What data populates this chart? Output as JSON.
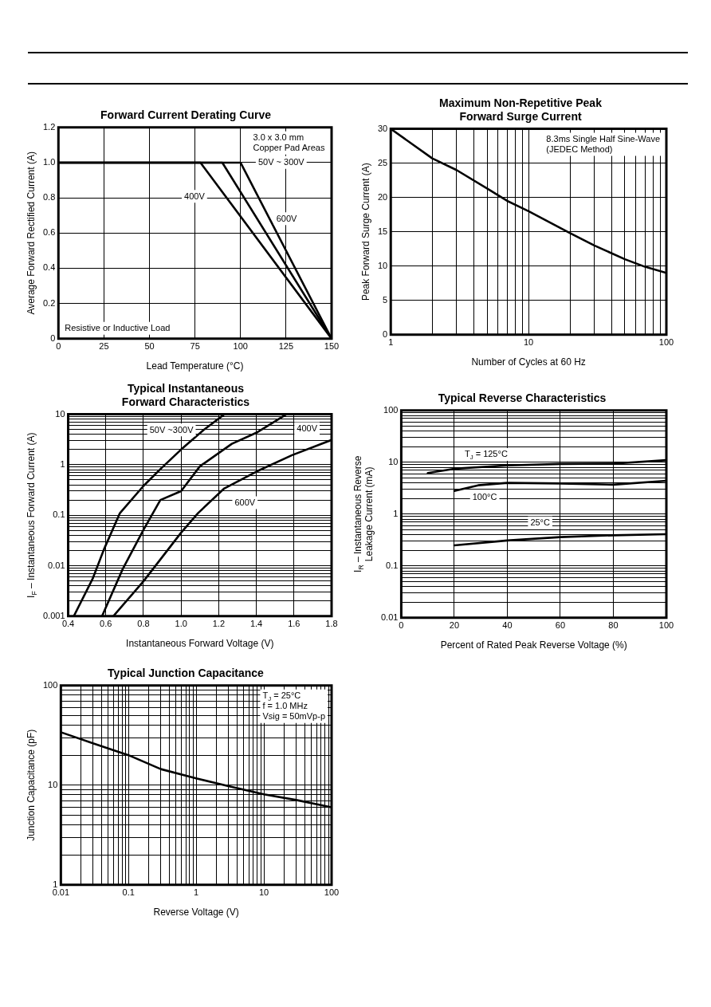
{
  "chart_data": [
    {
      "type": "line",
      "title": "Forward Current Derating Curve",
      "xlabel": "Lead Temperature (°C)",
      "ylabel": "Average Forward Rectified Current (A)",
      "xlim": [
        0,
        150
      ],
      "xticks": [
        0,
        25,
        50,
        75,
        100,
        125,
        150
      ],
      "ylim": [
        0,
        1.2
      ],
      "yticks": [
        0,
        0.2,
        {
          "value": 0.4,
          "label": "0.4"
        },
        {
          "value": 0.6,
          "label": "0.6"
        },
        {
          "value": 0.8,
          "label": "0.8"
        },
        {
          "value": 1,
          "label": "1.0"
        },
        1.2
      ],
      "grid": true,
      "legend": false,
      "series": [
        {
          "color": "#000000",
          "x": [
            0,
            100,
            150
          ],
          "values": [
            1,
            1,
            0
          ]
        },
        {
          "color": "#000000",
          "x": [
            0,
            78,
            150
          ],
          "values": [
            1,
            1,
            0
          ]
        },
        {
          "color": "#000000",
          "x": [
            0,
            90,
            150
          ],
          "values": [
            1,
            1,
            0
          ]
        }
      ],
      "annotations": [
        "Resistive or Inductive Load",
        {
          "text": "50V ~ 300V",
          "x": 104,
          "y": 0.92
        },
        {
          "text": "400V",
          "x": 86,
          "y": 0.89
        },
        {
          "text": "600V",
          "x": 114,
          "y": 0.6
        },
        "3.0 x 3.0 mm\nCopper Pad Areas"
      ]
    },
    {
      "type": "line",
      "title": "Maximum Non-Repetitive Peak\nForward Surge Current",
      "xlabel": "Number of Cycles at 60 Hz",
      "ylabel": "Peak Forward Surge Current (A)",
      "log": "x",
      "xlim": [
        1,
        100
      ],
      "xticks": [
        1,
        {
          "value": 2,
          "label": null
        },
        {
          "value": 3,
          "label": null
        },
        {
          "value": 4,
          "label": null
        },
        {
          "value": 5,
          "label": null
        },
        {
          "value": 6,
          "label": null
        },
        {
          "value": 7,
          "label": null
        },
        {
          "value": 8,
          "label": null
        },
        {
          "value": 9,
          "label": null
        },
        10,
        {
          "value": 20,
          "label": null
        },
        {
          "value": 30,
          "label": null
        },
        {
          "value": 40,
          "label": null
        },
        {
          "value": 50,
          "label": null
        },
        {
          "value": 60,
          "label": null
        },
        {
          "value": 70,
          "label": null
        },
        {
          "value": 80,
          "label": null
        },
        {
          "value": 90,
          "label": null
        },
        100
      ],
      "ylim": [
        0,
        30
      ],
      "yticks": [
        0,
        5,
        10,
        15,
        20,
        25,
        30
      ],
      "grid": true,
      "legend": false,
      "series": [
        {
          "color": "#000000",
          "x": [
            1,
            2,
            3,
            5,
            7,
            10,
            20,
            30,
            50,
            70,
            100
          ],
          "values": [
            30,
            25.7,
            24,
            21.3,
            19.5,
            18,
            14.8,
            13,
            11,
            9.9,
            9
          ]
        }
      ],
      "annotations": [
        "8.3ms Single Half Sine-Wave\n(JEDEC Method)"
      ]
    },
    {
      "type": "line",
      "title": "Typical Instantaneous\nForward Characteristics",
      "xlabel": "Instantaneous Forward Voltage (V)",
      "ylabel": "I$_{F}$ – Instantaneous Forward Current (A)",
      "log": "y",
      "xlim": [
        0.4,
        1.8
      ],
      "xticks": [
        0.4,
        0.6,
        0.8,
        {
          "value": 1,
          "label": "1.0"
        },
        1.2,
        1.4,
        1.6,
        1.8
      ],
      "ylim": [
        0.001,
        10
      ],
      "yticks": [
        0.001,
        {
          "value": 0.002,
          "label": null
        },
        {
          "value": 0.003,
          "label": null
        },
        {
          "value": 0.004,
          "label": null
        },
        {
          "value": 0.005,
          "label": null
        },
        {
          "value": 0.006,
          "label": null
        },
        {
          "value": 0.007,
          "label": null
        },
        {
          "value": 0.008,
          "label": null
        },
        {
          "value": 0.009,
          "label": null
        },
        0.01,
        {
          "value": 0.02,
          "label": null
        },
        {
          "value": 0.03,
          "label": null
        },
        {
          "value": 0.04,
          "label": null
        },
        {
          "value": 0.05,
          "label": null
        },
        {
          "value": 0.06,
          "label": null
        },
        {
          "value": 0.07,
          "label": null
        },
        {
          "value": 0.08,
          "label": null
        },
        {
          "value": 0.09,
          "label": null
        },
        0.1,
        {
          "value": 0.2,
          "label": null
        },
        {
          "value": 0.3,
          "label": null
        },
        {
          "value": 0.4,
          "label": null
        },
        {
          "value": 0.5,
          "label": null
        },
        {
          "value": 0.6,
          "label": null
        },
        {
          "value": 0.7,
          "label": null
        },
        {
          "value": 0.8,
          "label": null
        },
        {
          "value": 0.9,
          "label": null
        },
        1,
        {
          "value": 2,
          "label": null
        },
        {
          "value": 3,
          "label": null
        },
        {
          "value": 4,
          "label": null
        },
        {
          "value": 5,
          "label": null
        },
        {
          "value": 6,
          "label": null
        },
        {
          "value": 7,
          "label": null
        },
        {
          "value": 8,
          "label": null
        },
        {
          "value": 9,
          "label": null
        },
        10
      ],
      "grid": true,
      "legend": false,
      "series": [
        {
          "color": "#000000",
          "x": [
            0.43,
            0.53,
            0.59,
            0.675,
            0.8,
            0.89,
            1.0,
            1.12,
            1.23
          ],
          "values": [
            0.001,
            0.0055,
            0.021,
            0.11,
            0.38,
            0.82,
            2,
            4.9,
            10
          ]
        },
        {
          "color": "#000000",
          "x": [
            0.58,
            0.69,
            0.8,
            0.89,
            1.0,
            1.1,
            1.27,
            1.4,
            1.56
          ],
          "values": [
            0.001,
            0.0086,
            0.051,
            0.2,
            0.3,
            0.93,
            2.6,
            4.3,
            10
          ]
        },
        {
          "color": "#000000",
          "x": [
            0.64,
            0.8,
            1.0,
            1.09,
            1.23,
            1.4,
            1.59,
            1.8
          ],
          "values": [
            0.001,
            0.0049,
            0.045,
            0.11,
            0.34,
            0.73,
            1.55,
            3.1
          ]
        }
      ],
      "annotations": [
        {
          "text": "50V ~300V",
          "x": 1.12,
          "y": 4.9
        },
        {
          "text": "400V",
          "x": 1.56,
          "y": 10
        },
        {
          "text": "600V",
          "x": 1.23,
          "y": 0.34
        }
      ]
    },
    {
      "type": "line",
      "title": "Typical Reverse Characteristics",
      "xlabel": "Percent of Rated Peak Reverse Voltage (%)",
      "ylabel": "I$_{R}$ – Instantaneous Reverse\nLeakage Current (mA)",
      "log": "y",
      "xlim": [
        0,
        100
      ],
      "xticks": [
        0,
        20,
        40,
        60,
        80,
        100
      ],
      "ylim": [
        0.01,
        100
      ],
      "yticks": [
        0.01,
        {
          "value": 0.02,
          "label": null
        },
        {
          "value": 0.03,
          "label": null
        },
        {
          "value": 0.04,
          "label": null
        },
        {
          "value": 0.05,
          "label": null
        },
        {
          "value": 0.06,
          "label": null
        },
        {
          "value": 0.07,
          "label": null
        },
        {
          "value": 0.08,
          "label": null
        },
        {
          "value": 0.09,
          "label": null
        },
        0.1,
        {
          "value": 0.2,
          "label": null
        },
        {
          "value": 0.3,
          "label": null
        },
        {
          "value": 0.4,
          "label": null
        },
        {
          "value": 0.5,
          "label": null
        },
        {
          "value": 0.6,
          "label": null
        },
        {
          "value": 0.7,
          "label": null
        },
        {
          "value": 0.8,
          "label": null
        },
        {
          "value": 0.9,
          "label": null
        },
        1,
        {
          "value": 2,
          "label": null
        },
        {
          "value": 3,
          "label": null
        },
        {
          "value": 4,
          "label": null
        },
        {
          "value": 5,
          "label": null
        },
        {
          "value": 6,
          "label": null
        },
        {
          "value": 7,
          "label": null
        },
        {
          "value": 8,
          "label": null
        },
        {
          "value": 9,
          "label": null
        },
        10,
        {
          "value": 20,
          "label": null
        },
        {
          "value": 30,
          "label": null
        },
        {
          "value": 40,
          "label": null
        },
        {
          "value": 50,
          "label": null
        },
        {
          "value": 60,
          "label": null
        },
        {
          "value": 70,
          "label": null
        },
        {
          "value": 80,
          "label": null
        },
        {
          "value": 90,
          "label": null
        },
        100
      ],
      "grid": true,
      "legend": false,
      "series": [
        {
          "color": "#000000",
          "x": [
            10,
            20,
            40,
            60,
            80,
            100
          ],
          "values": [
            6.2,
            7.5,
            8.7,
            9.3,
            9.4,
            11
          ]
        },
        {
          "color": "#000000",
          "x": [
            20,
            29,
            40,
            60,
            80,
            100
          ],
          "values": [
            2.8,
            3.6,
            4,
            3.9,
            3.7,
            4.4
          ]
        },
        {
          "color": "#000000",
          "x": [
            20,
            40,
            60,
            80,
            100
          ],
          "values": [
            0.25,
            0.31,
            0.36,
            0.39,
            0.41
          ]
        }
      ],
      "annotations": [
        {
          "text": "T$_{J}$ = 125°C",
          "x": 20,
          "y": 7.5
        },
        {
          "text": "100°C",
          "x": 40,
          "y": 4
        },
        {
          "text": "25°C",
          "x": 60,
          "y": 0.36
        }
      ]
    },
    {
      "type": "line",
      "title": "Typical Junction Capacitance",
      "xlabel": "Reverse Voltage (V)",
      "ylabel": "Junction Capacitance (pF)",
      "log": "xy",
      "xlim": [
        0.01,
        100
      ],
      "xticks": [
        0.01,
        {
          "value": 0.02,
          "label": null
        },
        {
          "value": 0.03,
          "label": null
        },
        {
          "value": 0.04,
          "label": null
        },
        {
          "value": 0.05,
          "label": null
        },
        {
          "value": 0.06,
          "label": null
        },
        {
          "value": 0.07,
          "label": null
        },
        {
          "value": 0.08,
          "label": null
        },
        {
          "value": 0.09,
          "label": null
        },
        0.1,
        {
          "value": 0.2,
          "label": null
        },
        {
          "value": 0.3,
          "label": null
        },
        {
          "value": 0.4,
          "label": null
        },
        {
          "value": 0.5,
          "label": null
        },
        {
          "value": 0.6,
          "label": null
        },
        {
          "value": 0.7,
          "label": null
        },
        {
          "value": 0.8,
          "label": null
        },
        {
          "value": 0.9,
          "label": null
        },
        1,
        {
          "value": 2,
          "label": null
        },
        {
          "value": 3,
          "label": null
        },
        {
          "value": 4,
          "label": null
        },
        {
          "value": 5,
          "label": null
        },
        {
          "value": 6,
          "label": null
        },
        {
          "value": 7,
          "label": null
        },
        {
          "value": 8,
          "label": null
        },
        {
          "value": 9,
          "label": null
        },
        10,
        {
          "value": 20,
          "label": null
        },
        {
          "value": 30,
          "label": null
        },
        {
          "value": 40,
          "label": null
        },
        {
          "value": 50,
          "label": null
        },
        {
          "value": 60,
          "label": null
        },
        {
          "value": 70,
          "label": null
        },
        {
          "value": 80,
          "label": null
        },
        {
          "value": 90,
          "label": null
        },
        100
      ],
      "ylim": [
        1,
        100
      ],
      "yticks": [
        1,
        {
          "value": 2,
          "label": null
        },
        {
          "value": 3,
          "label": null
        },
        {
          "value": 4,
          "label": null
        },
        {
          "value": 5,
          "label": null
        },
        {
          "value": 6,
          "label": null
        },
        {
          "value": 7,
          "label": null
        },
        {
          "value": 8,
          "label": null
        },
        {
          "value": 9,
          "label": null
        },
        10,
        {
          "value": 20,
          "label": null
        },
        {
          "value": 30,
          "label": null
        },
        {
          "value": 40,
          "label": null
        },
        {
          "value": 50,
          "label": null
        },
        {
          "value": 60,
          "label": null
        },
        {
          "value": 70,
          "label": null
        },
        {
          "value": 80,
          "label": null
        },
        {
          "value": 90,
          "label": null
        },
        100
      ],
      "grid": true,
      "legend": false,
      "series": [
        {
          "color": "#000000",
          "x": [
            0.01,
            0.0316,
            0.1,
            0.3,
            1,
            3,
            10,
            30,
            100
          ],
          "values": [
            34,
            26,
            20,
            14.5,
            11.7,
            9.8,
            8.1,
            7.1,
            6
          ]
        }
      ],
      "annotations": [
        "T$_{J}$ = 25°C\nf = 1.0 MHz\nVsig = 50mVp-p"
      ]
    }
  ]
}
